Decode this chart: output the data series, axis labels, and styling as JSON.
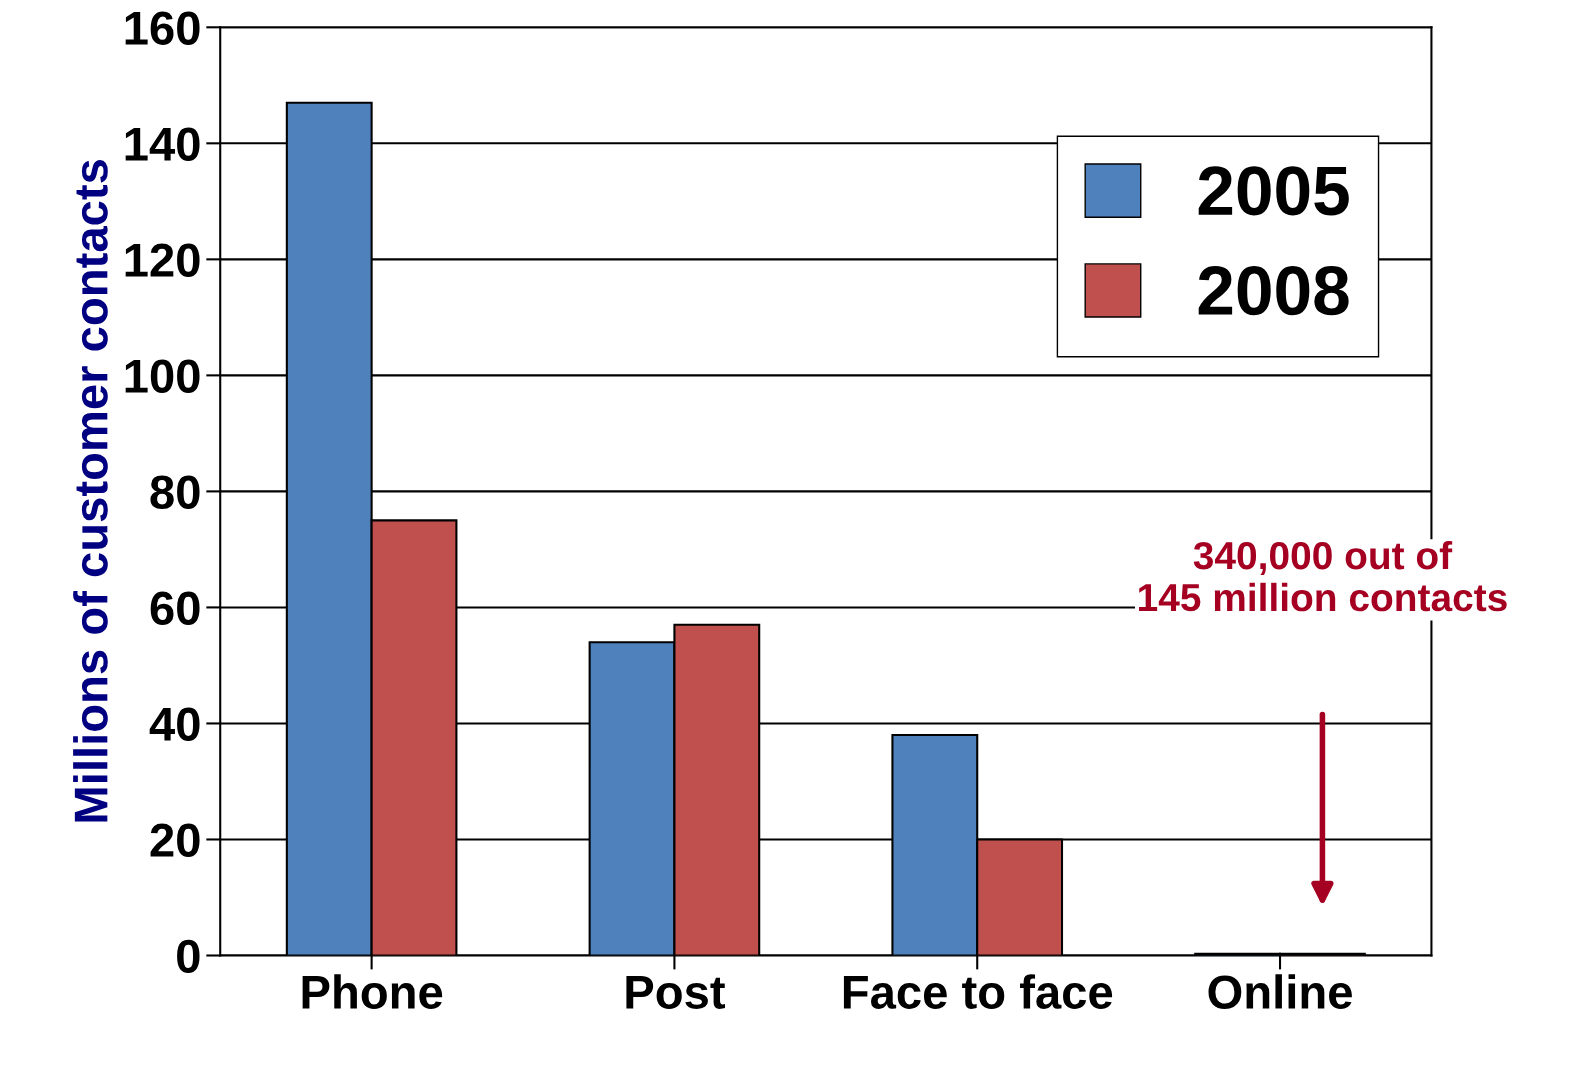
{
  "chart_data": {
    "type": "bar",
    "ylabel": "Millions of customer contacts",
    "categories": [
      "Phone",
      "Post",
      "Face to face",
      "Online"
    ],
    "series": [
      {
        "name": "2005",
        "color": "#4f81bd",
        "values": [
          147,
          54,
          38,
          0.3
        ]
      },
      {
        "name": "2008",
        "color": "#c0504d",
        "values": [
          75,
          57,
          20,
          0.3
        ]
      }
    ],
    "ylim": [
      0,
      160
    ],
    "yticks": [
      0,
      20,
      40,
      60,
      80,
      100,
      120,
      140,
      160
    ],
    "grid": "y",
    "legend": "top right",
    "annotations": [
      "340,000 out of\n145 million contacts"
    ]
  }
}
